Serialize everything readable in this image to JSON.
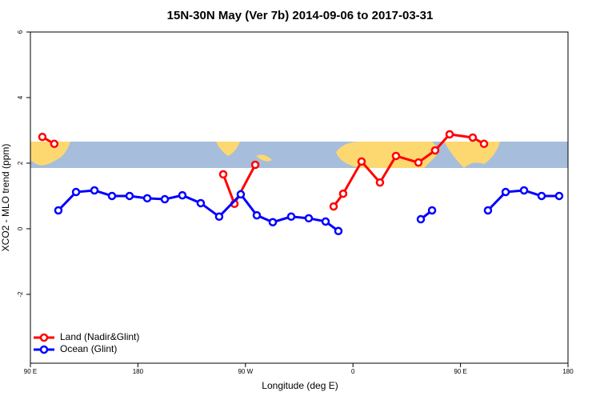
{
  "chart_data": {
    "type": "line",
    "title": "15N-30N May (Ver 7b)   2014-09-06 to 2017-03-31",
    "xlabel": "Longitude (deg E)",
    "ylabel": "XCO2 - MLO trend (ppm)",
    "xlim": [
      90,
      540
    ],
    "ylim": [
      -4.1,
      6
    ],
    "xticks": [
      {
        "value": 90,
        "label": "90 E"
      },
      180,
      {
        "value": 270,
        "label": "90 W"
      },
      {
        "value": 360,
        "label": "0"
      },
      {
        "value": 450,
        "label": "90 E"
      },
      {
        "value": 540,
        "label": "180"
      }
    ],
    "yticks": [
      -2,
      0,
      2,
      4,
      6
    ],
    "legend": "bottom-left",
    "series": [
      {
        "name": "Land (Nadir&Glint)",
        "color": "#ff0000",
        "x": [
          100,
          110,
          null,
          251.4,
          260.8,
          278.2,
          null,
          343.8,
          351.8,
          367.2,
          382.6,
          396,
          414.8,
          428.8,
          440.9,
          460.3,
          469.7
        ],
        "values": [
          2.8,
          2.59,
          null,
          1.66,
          0.76,
          1.95,
          null,
          0.68,
          1.07,
          2.05,
          1.41,
          2.22,
          2.02,
          2.39,
          2.88,
          2.78,
          2.59
        ]
      },
      {
        "name": "Ocean (Glint)",
        "color": "#0000ff",
        "x": [
          113.4,
          128.2,
          143.6,
          158.3,
          173,
          187.8,
          202.5,
          217.2,
          232.6,
          248,
          266.1,
          279.5,
          292.9,
          308.3,
          323,
          337.1,
          347.8,
          null,
          416.8,
          426.2,
          null,
          473,
          487.8,
          503.2,
          517.9,
          532.6
        ],
        "values": [
          0.56,
          1.12,
          1.17,
          1.0,
          1.0,
          0.93,
          0.9,
          1.02,
          0.78,
          0.37,
          1.05,
          0.41,
          0.2,
          0.37,
          0.32,
          0.22,
          -0.07,
          null,
          0.29,
          0.56,
          null,
          0.56,
          1.12,
          1.17,
          1.0,
          1.0
        ]
      }
    ]
  }
}
